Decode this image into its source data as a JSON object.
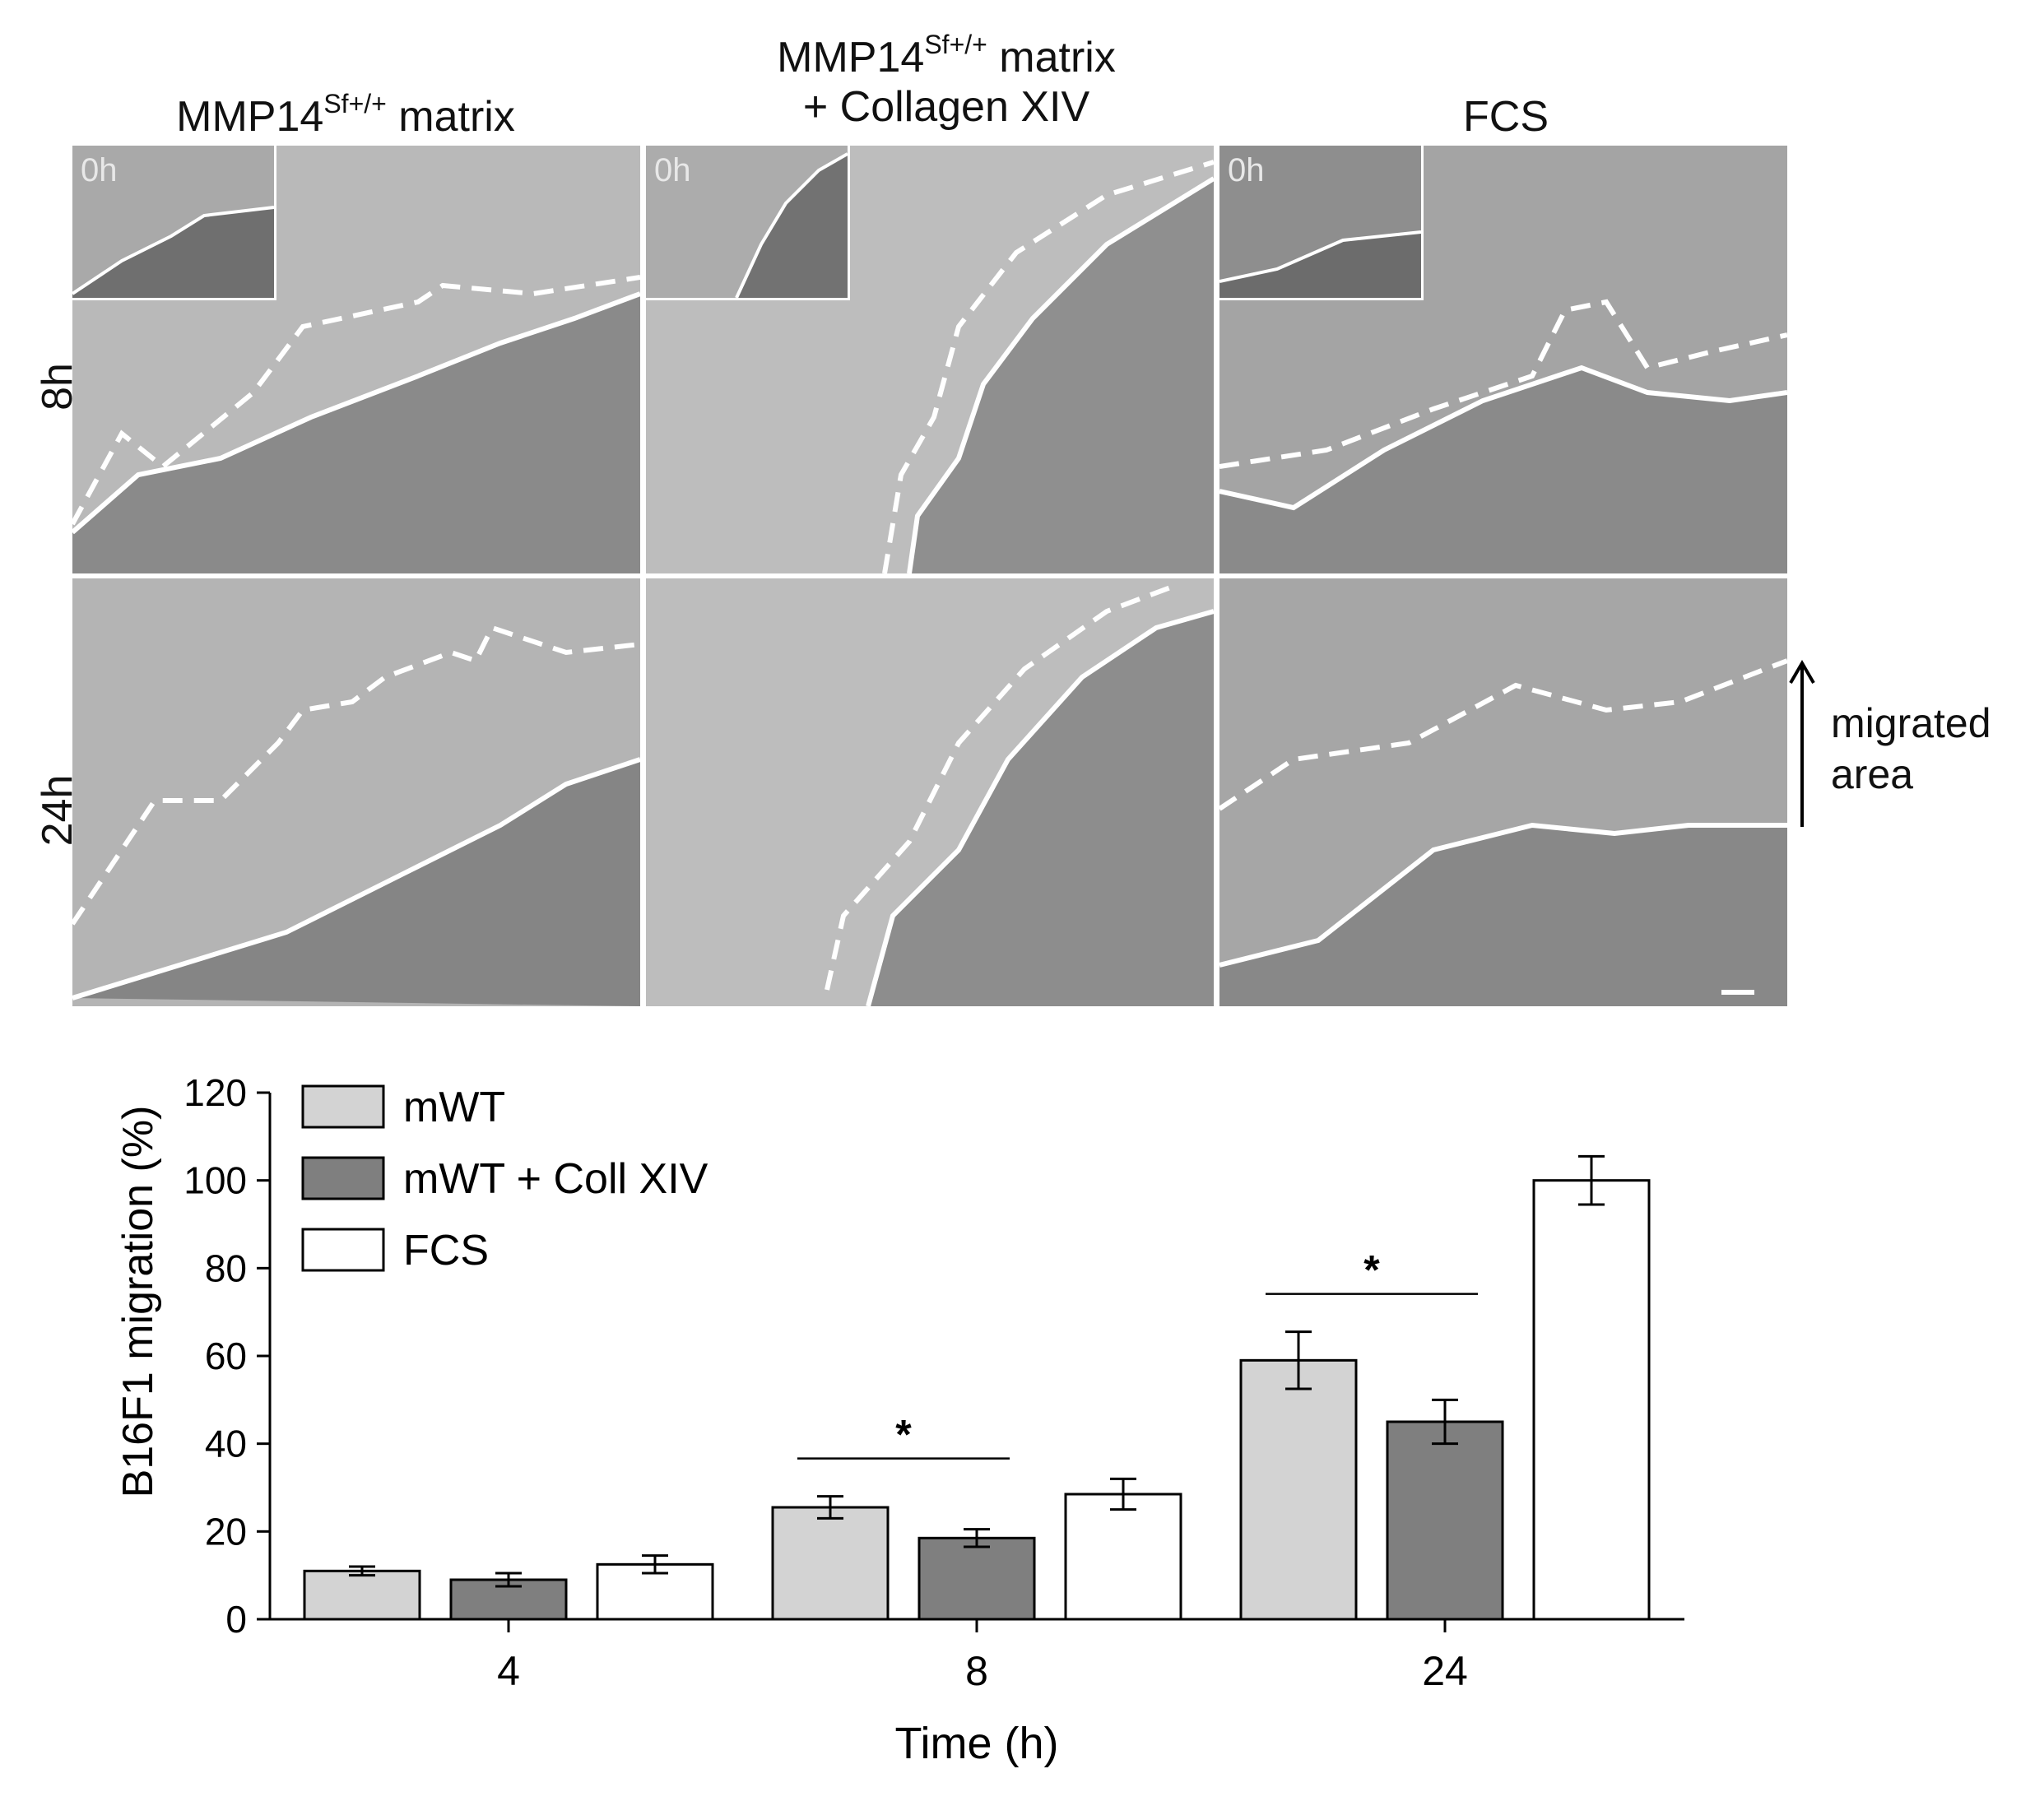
{
  "figure": {
    "columns": [
      {
        "main": "MMP14",
        "sup": "Sf+/+",
        "tail": " matrix",
        "line2": ""
      },
      {
        "main": "MMP14",
        "sup": "Sf+/+",
        "tail": " matrix",
        "line2": "+ Collagen XIV"
      },
      {
        "main": "FCS",
        "sup": "",
        "tail": "",
        "line2": ""
      }
    ],
    "rows": [
      "8h",
      "24h"
    ],
    "inset_label": "0h",
    "migrated_label_line1": "migrated",
    "migrated_label_line2": "area"
  },
  "chart_data": {
    "type": "bar",
    "xlabel": "Time (h)",
    "ylabel": "B16F1 migration (%)",
    "ylim": [
      0,
      120
    ],
    "yticks": [
      0,
      20,
      40,
      60,
      80,
      100,
      120
    ],
    "categories": [
      "4",
      "8",
      "24"
    ],
    "series": [
      {
        "name": "mWT",
        "color": "#d3d3d3",
        "values": [
          11,
          25.5,
          59
        ],
        "errors": [
          1,
          2.5,
          6.5
        ]
      },
      {
        "name": "mWT + Coll XIV",
        "color": "#7f7f7f",
        "values": [
          9,
          18.5,
          45
        ],
        "errors": [
          1.5,
          2,
          5
        ]
      },
      {
        "name": "FCS",
        "color": "#ffffff",
        "values": [
          12.5,
          28.5,
          100
        ],
        "errors": [
          2,
          3.5,
          5.5
        ]
      }
    ],
    "significance": [
      {
        "category": "8",
        "between": [
          "mWT",
          "mWT + Coll XIV"
        ],
        "label": "*"
      },
      {
        "category": "24",
        "between": [
          "mWT",
          "mWT + Coll XIV"
        ],
        "label": "*"
      }
    ],
    "legend_position": "top-left"
  }
}
